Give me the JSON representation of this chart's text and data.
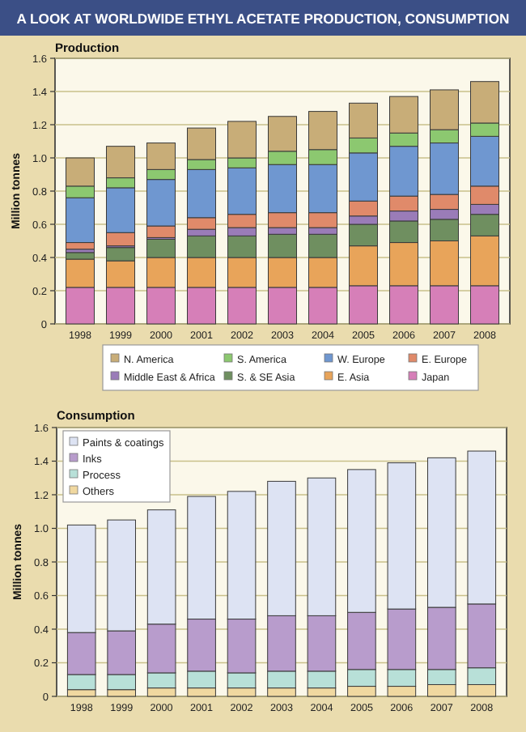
{
  "chart_data": [
    {
      "type": "bar",
      "title": "A LOOK AT WORLDWIDE ETHYL ACETATE PRODUCTION, CONSUMPTION",
      "subtitle": "Production",
      "ylabel": "Million tonnes",
      "categories": [
        "1998",
        "1999",
        "2000",
        "2001",
        "2002",
        "2003",
        "2004",
        "2005",
        "2006",
        "2007",
        "2008"
      ],
      "stacked": true,
      "ylim": [
        0,
        1.6
      ],
      "yticks": [
        0,
        0.2,
        0.4,
        0.6,
        0.8,
        {
          "value": 1,
          "label": "1.0"
        },
        1.2,
        1.4,
        1.6
      ],
      "grid": "y",
      "legend": "bottom",
      "series": [
        {
          "name": "Japan",
          "color": "#d67fb8",
          "values": [
            0.22,
            0.22,
            0.22,
            0.22,
            0.22,
            0.22,
            0.22,
            0.23,
            0.23,
            0.23,
            0.23
          ]
        },
        {
          "name": "E. Asia",
          "color": "#e8a45a",
          "values": [
            0.17,
            0.16,
            0.18,
            0.18,
            0.18,
            0.18,
            0.18,
            0.24,
            0.26,
            0.27,
            0.3
          ]
        },
        {
          "name": "S. & SE Asia",
          "color": "#6f8f60",
          "values": [
            0.04,
            0.08,
            0.11,
            0.13,
            0.13,
            0.14,
            0.14,
            0.13,
            0.13,
            0.13,
            0.13
          ]
        },
        {
          "name": "Middle East & Africa",
          "color": "#9a7cb8",
          "values": [
            0.02,
            0.01,
            0.01,
            0.04,
            0.05,
            0.04,
            0.04,
            0.05,
            0.06,
            0.06,
            0.06
          ]
        },
        {
          "name": "E. Europe",
          "color": "#e08a6a",
          "values": [
            0.04,
            0.08,
            0.07,
            0.07,
            0.08,
            0.09,
            0.09,
            0.09,
            0.09,
            0.09,
            0.11
          ]
        },
        {
          "name": "W. Europe",
          "color": "#6f97d0",
          "values": [
            0.27,
            0.27,
            0.28,
            0.29,
            0.28,
            0.29,
            0.29,
            0.29,
            0.3,
            0.31,
            0.3
          ]
        },
        {
          "name": "S. America",
          "color": "#8cc870",
          "values": [
            0.07,
            0.06,
            0.06,
            0.06,
            0.06,
            0.08,
            0.09,
            0.09,
            0.08,
            0.08,
            0.08
          ]
        },
        {
          "name": "N. America",
          "color": "#c8ad78",
          "values": [
            0.17,
            0.19,
            0.16,
            0.19,
            0.22,
            0.21,
            0.23,
            0.21,
            0.22,
            0.24,
            0.25
          ]
        }
      ]
    },
    {
      "type": "bar",
      "title": "Consumption",
      "ylabel": "Million tonnes",
      "categories": [
        "1998",
        "1999",
        "2000",
        "2001",
        "2002",
        "2003",
        "2004",
        "2005",
        "2006",
        "2007",
        "2008"
      ],
      "stacked": true,
      "ylim": [
        0,
        1.6
      ],
      "yticks": [
        0,
        0.2,
        0.4,
        0.6,
        0.8,
        {
          "value": 1,
          "label": "1.0"
        },
        1.2,
        1.4,
        1.6
      ],
      "grid": "y",
      "legend": "top left",
      "series": [
        {
          "name": "Others",
          "color": "#f0d8a0",
          "values": [
            0.04,
            0.04,
            0.05,
            0.05,
            0.05,
            0.05,
            0.05,
            0.06,
            0.06,
            0.07,
            0.07
          ]
        },
        {
          "name": "Process",
          "color": "#b8e0d8",
          "values": [
            0.09,
            0.09,
            0.09,
            0.1,
            0.09,
            0.1,
            0.1,
            0.1,
            0.1,
            0.09,
            0.1
          ]
        },
        {
          "name": "Inks",
          "color": "#b89ccc",
          "values": [
            0.25,
            0.26,
            0.29,
            0.31,
            0.32,
            0.33,
            0.33,
            0.34,
            0.36,
            0.37,
            0.38
          ]
        },
        {
          "name": "Paints & coatings",
          "color": "#dde3f3",
          "values": [
            0.64,
            0.66,
            0.68,
            0.73,
            0.76,
            0.8,
            0.82,
            0.85,
            0.87,
            0.89,
            0.91
          ]
        }
      ]
    }
  ]
}
